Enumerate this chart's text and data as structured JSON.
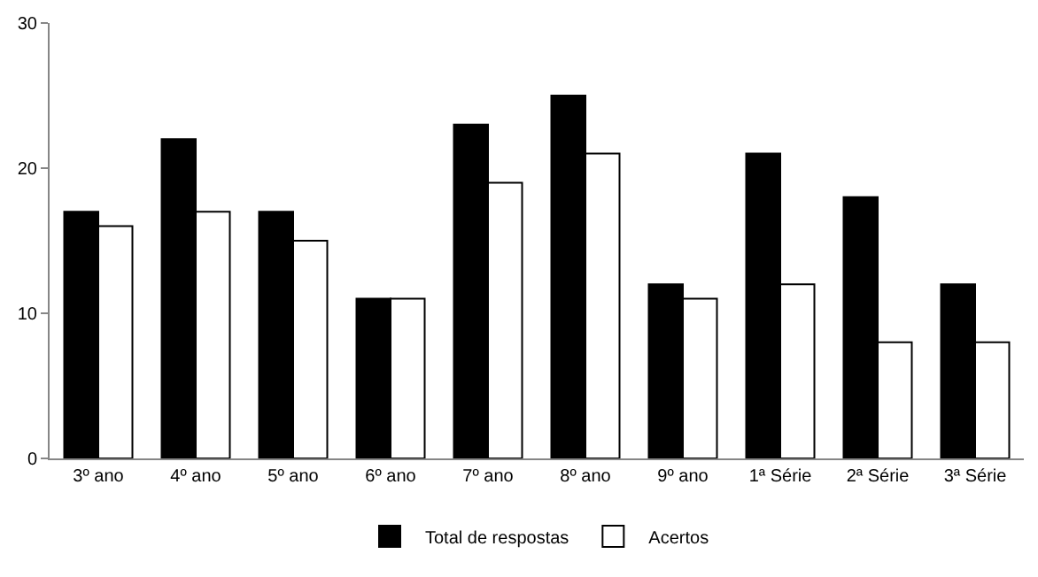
{
  "chart_data": {
    "type": "bar",
    "categories": [
      "3º ano",
      "4º ano",
      "5º ano",
      "6º ano",
      "7º ano",
      "8º ano",
      "9º ano",
      "1ª Série",
      "2ª Série",
      "3ª Série"
    ],
    "series": [
      {
        "name": "Total de respostas",
        "color": "#000000",
        "values": [
          17,
          22,
          17,
          11,
          23,
          25,
          12,
          21,
          18,
          12
        ]
      },
      {
        "name": "Acertos",
        "color": "#ffffff",
        "values": [
          16,
          17,
          15,
          11,
          19,
          21,
          11,
          12,
          8,
          8
        ]
      }
    ],
    "ylim": [
      0,
      30
    ],
    "yticks": [
      0,
      10,
      20,
      30
    ],
    "grid": false,
    "legend": "bottom"
  }
}
